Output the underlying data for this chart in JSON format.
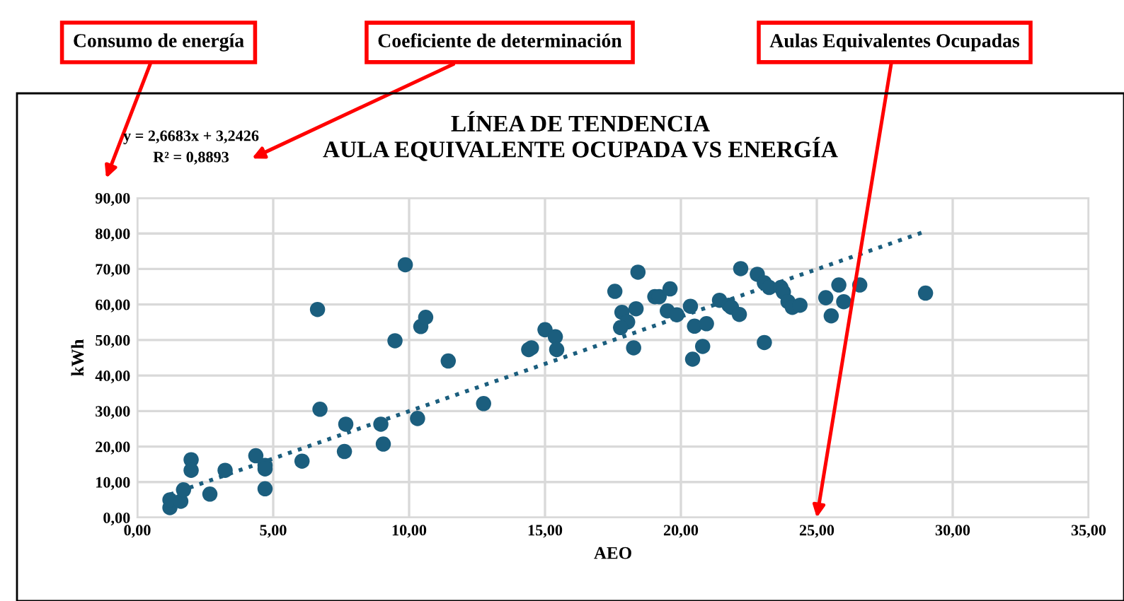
{
  "chart_data": {
    "type": "scatter",
    "title": "LÍNEA DE TENDENCIA\nAULA EQUIVALENTE OCUPADA VS ENERGÍA",
    "xlabel": "AEO",
    "ylabel": "kWh",
    "annotations": [
      "Consumo de energía",
      "Coeficiente de determinación",
      "Aulas Equivalentes Ocupadas",
      "y = 2,6683x + 3,2426",
      "R² = 0,8893"
    ],
    "xlim": [
      0,
      35
    ],
    "ylim": [
      0,
      90
    ],
    "xticks": [
      {
        "value": 0,
        "label": "0,00"
      },
      {
        "value": 5,
        "label": "5,00"
      },
      {
        "value": 10,
        "label": "10,00"
      },
      {
        "value": 15,
        "label": "15,00"
      },
      {
        "value": 20,
        "label": "20,00"
      },
      {
        "value": 25,
        "label": "25,00"
      },
      {
        "value": 30,
        "label": "30,00"
      },
      {
        "value": 35,
        "label": "35,00"
      }
    ],
    "yticks": [
      {
        "value": 0,
        "label": "0,00"
      },
      {
        "value": 10,
        "label": "10,00"
      },
      {
        "value": 20,
        "label": "20,00"
      },
      {
        "value": 30,
        "label": "30,00"
      },
      {
        "value": 40,
        "label": "40,00"
      },
      {
        "value": 50,
        "label": "50,00"
      },
      {
        "value": 60,
        "label": "60,00"
      },
      {
        "value": 70,
        "label": "70,00"
      },
      {
        "value": 80,
        "label": "80,00"
      },
      {
        "value": 90,
        "label": "90,00"
      }
    ],
    "grid": true,
    "legend": false,
    "series": [
      {
        "color": "#1b5e7e",
        "marker": "circle",
        "x": [
          1.2,
          1.2,
          1.6,
          1.7,
          1.98,
          1.98,
          2.67,
          3.23,
          4.36,
          4.7,
          4.7,
          4.7,
          6.06,
          6.63,
          6.72,
          7.67,
          7.62,
          8.96,
          9.05,
          9.48,
          9.86,
          10.31,
          10.43,
          10.61,
          11.44,
          12.74,
          14.4,
          14.5,
          15.0,
          15.38,
          15.43,
          17.57,
          17.83,
          18.04,
          17.78,
          18.26,
          18.35,
          18.42,
          19.04,
          19.2,
          19.6,
          19.5,
          19.85,
          20.35,
          20.43,
          20.5,
          20.8,
          20.94,
          21.42,
          21.77,
          21.86,
          22.15,
          22.2,
          22.81,
          23.07,
          23.25,
          23.68,
          23.77,
          23.94,
          24.1,
          24.38,
          23.07,
          25.33,
          25.81,
          25.53,
          25.99,
          26.58,
          29.0
        ],
        "values": [
          2.8,
          5.0,
          4.6,
          7.8,
          16.3,
          13.3,
          6.6,
          13.3,
          17.4,
          14.7,
          13.7,
          8.1,
          15.9,
          58.6,
          30.5,
          26.3,
          18.6,
          26.3,
          20.7,
          49.8,
          71.2,
          27.9,
          53.8,
          56.4,
          44.1,
          32.1,
          47.3,
          47.8,
          52.9,
          50.9,
          47.3,
          63.7,
          57.8,
          55.1,
          53.5,
          47.8,
          58.8,
          69.1,
          62.2,
          62.2,
          64.4,
          58.2,
          57.1,
          59.5,
          44.6,
          53.9,
          48.2,
          54.6,
          61.2,
          59.8,
          59.2,
          57.2,
          70.1,
          68.5,
          66.1,
          64.8,
          64.8,
          63.5,
          60.8,
          59.2,
          59.8,
          49.3,
          61.9,
          65.5,
          56.8,
          60.8,
          65.5,
          63.2
        ]
      },
      {
        "type": "line",
        "color": "#1b5e7e",
        "line_style": "dotted",
        "marker": "none",
        "x": [
          1.2,
          29.0
        ],
        "values": [
          6.5,
          80.6
        ]
      }
    ]
  }
}
